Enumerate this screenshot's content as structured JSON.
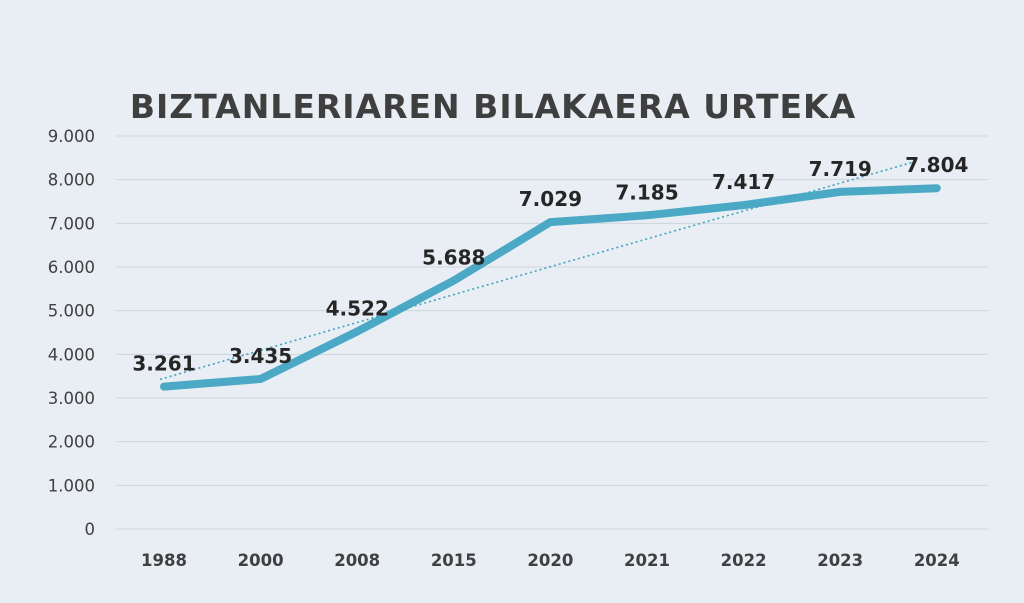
{
  "colors": {
    "background": "#e9eef4",
    "series_line": "#4ba9c6",
    "trendline": "#3fa3bf",
    "gridline": "#cfd5dc",
    "text": "#404040"
  },
  "chart_data": {
    "type": "line",
    "title": "BIZTANLERIAREN  BILAKAERA  URTEKA",
    "xlabel": "",
    "ylabel": "",
    "categories": [
      "1988",
      "2000",
      "2008",
      "2015",
      "2020",
      "2021",
      "2022",
      "2023",
      "2024"
    ],
    "series": [
      {
        "values": [
          3261,
          3435,
          4522,
          5688,
          7029,
          7185,
          7417,
          7719,
          7804
        ],
        "data_labels": [
          "3.261",
          "3.435",
          "4.522",
          "5.688",
          "7.029",
          "7.185",
          "7.417",
          "7.719",
          "7.804"
        ]
      }
    ],
    "trendline": {
      "type": "linear",
      "style": "dotted"
    },
    "ylim": [
      0,
      9000
    ],
    "y_ticks": [
      {
        "value": 0,
        "label": "0"
      },
      {
        "value": 1000,
        "label": "1.000"
      },
      {
        "value": 2000,
        "label": "2.000"
      },
      {
        "value": 3000,
        "label": "3.000"
      },
      {
        "value": 4000,
        "label": "4.000"
      },
      {
        "value": 5000,
        "label": "5.000"
      },
      {
        "value": 6000,
        "label": "6.000"
      },
      {
        "value": 7000,
        "label": "7.000"
      },
      {
        "value": 8000,
        "label": "8.000"
      },
      {
        "value": 9000,
        "label": "9.000"
      }
    ],
    "grid": true,
    "legend": "none"
  }
}
